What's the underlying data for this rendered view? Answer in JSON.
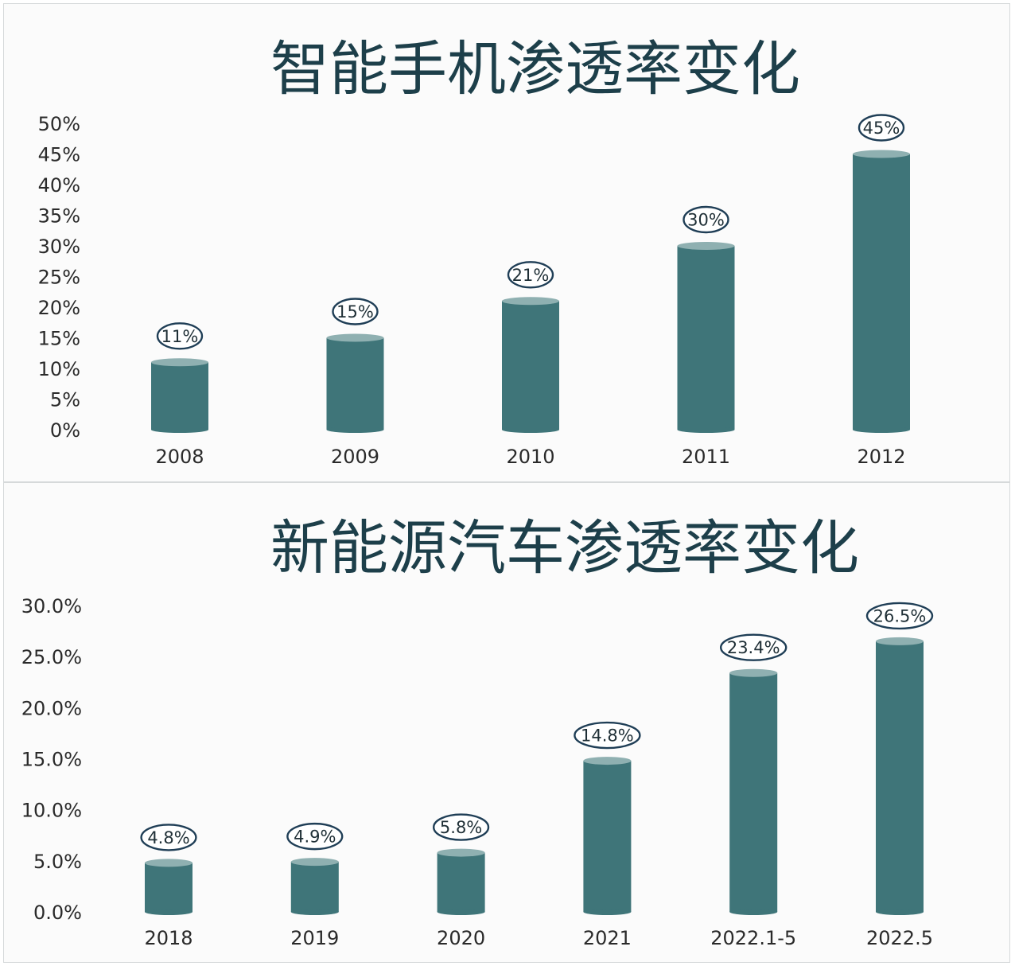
{
  "colors": {
    "bar": "#3f7579",
    "bar_top": "#8fb0b1",
    "title": "#1d3f4a",
    "label_ring": "#1f3e56"
  },
  "chart_data": [
    {
      "type": "bar",
      "title": "智能手机渗透率变化",
      "categories": [
        "2008",
        "2009",
        "2010",
        "2011",
        "2012"
      ],
      "values": [
        11,
        15,
        21,
        30,
        45
      ],
      "data_labels": [
        "11%",
        "15%",
        "21%",
        "30%",
        "45%"
      ],
      "ylim": [
        0,
        50
      ],
      "yticks": [
        0,
        5,
        10,
        15,
        20,
        25,
        30,
        35,
        40,
        45,
        50
      ],
      "ytick_labels": [
        "0%",
        "5%",
        "10%",
        "15%",
        "20%",
        "25%",
        "30%",
        "35%",
        "40%",
        "45%",
        "50%"
      ],
      "grid": false,
      "legend": "none"
    },
    {
      "type": "bar",
      "title": "新能源汽车渗透率变化",
      "categories": [
        "2018",
        "2019",
        "2020",
        "2021",
        "2022.1-5",
        "2022.5"
      ],
      "values": [
        4.8,
        4.9,
        5.8,
        14.8,
        23.4,
        26.5
      ],
      "data_labels": [
        "4.8%",
        "4.9%",
        "5.8%",
        "14.8%",
        "23.4%",
        "26.5%"
      ],
      "ylim": [
        0,
        30
      ],
      "yticks": [
        0,
        5,
        10,
        15,
        20,
        25,
        30
      ],
      "ytick_labels": [
        "0.0%",
        "5.0%",
        "10.0%",
        "15.0%",
        "20.0%",
        "25.0%",
        "30.0%"
      ],
      "grid": false,
      "legend": "none"
    }
  ]
}
